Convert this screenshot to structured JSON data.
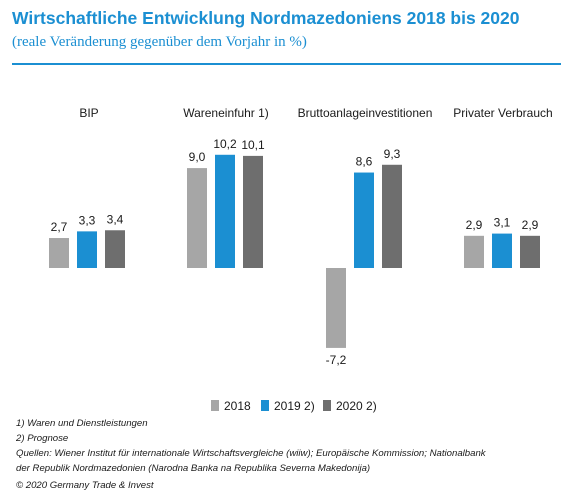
{
  "header": {
    "title": "Wirtschaftliche Entwicklung Nordmazedoniens 2018 bis 2020",
    "subtitle": "(reale Veränderung  gegenüber  dem Vorjahr in %)"
  },
  "colors": {
    "accent": "#1b8fd2",
    "series_2018": "#a6a6a6",
    "series_2019": "#1b8fd2",
    "series_2020": "#6e6e6e"
  },
  "chart_data": {
    "type": "bar",
    "categories": [
      "BIP",
      "Wareneinfuhr 1)",
      "Bruttoanlageinvestitionen",
      "Privater Verbrauch"
    ],
    "series": [
      {
        "name": "2018",
        "values": [
          2.7,
          9.0,
          -7.2,
          2.9
        ],
        "labels": [
          "2,7",
          "9,0",
          "-7,2",
          "2,9"
        ]
      },
      {
        "name": "2019 2)",
        "values": [
          3.3,
          10.2,
          8.6,
          3.1
        ],
        "labels": [
          "3,3",
          "10,2",
          "8,6",
          "3,1"
        ]
      },
      {
        "name": "2020 2)",
        "values": [
          3.4,
          10.1,
          9.3,
          2.9
        ],
        "labels": [
          "3,4",
          "10,1",
          "9,3",
          "2,9"
        ]
      }
    ],
    "legend_position": "bottom-right",
    "grid": false
  },
  "footnotes": {
    "note1": "1) Waren und Dienstleistungen",
    "note2": "2) Prognose",
    "sources_line1": "Quellen: Wiener Institut für internationale Wirtschaftsvergleiche (wiiw); Europäische Kommission; Nationalbank",
    "sources_line2": "der Republik Nordmazedonien (Narodna Banka na Republika Severna Makedonija)",
    "copyright": "© 2020 Germany Trade & Invest"
  }
}
